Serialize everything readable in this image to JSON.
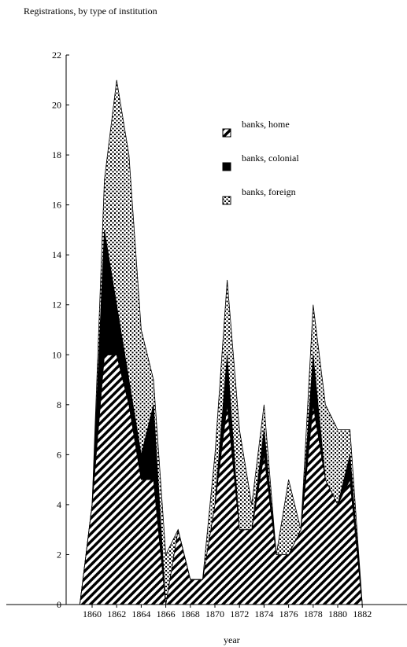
{
  "chart_data": {
    "type": "area",
    "stacked": true,
    "title": "Registrations, by type of institution",
    "xlabel": "year",
    "ylabel": "",
    "x": [
      1859,
      1860,
      1861,
      1862,
      1863,
      1864,
      1865,
      1866,
      1867,
      1868,
      1869,
      1870,
      1871,
      1872,
      1873,
      1874,
      1875,
      1876,
      1877,
      1878,
      1879,
      1880,
      1881,
      1882
    ],
    "xlim": [
      1859.5,
      1882.5
    ],
    "ylim": [
      0,
      22
    ],
    "x_ticks": [
      1860,
      1862,
      1864,
      1866,
      1868,
      1870,
      1872,
      1874,
      1876,
      1878,
      1880,
      1882
    ],
    "x_tick_labels": [
      "1860",
      "1862",
      "1864",
      "1866",
      "1868",
      "1870",
      "1872",
      "1874",
      "1876",
      "1878",
      "1880",
      "1882"
    ],
    "y_ticks": [
      0,
      2,
      4,
      6,
      8,
      10,
      12,
      14,
      16,
      18,
      20,
      22
    ],
    "y_tick_labels": [
      "0",
      "2",
      "4",
      "6",
      "8",
      "10",
      "12",
      "14",
      "16",
      "18",
      "20",
      "22"
    ],
    "series": [
      {
        "name": "banks, home",
        "values": [
          0,
          4,
          10,
          10,
          8,
          5,
          5,
          0,
          3,
          1,
          1,
          4,
          8,
          3,
          3,
          6,
          2,
          2,
          3,
          8,
          5,
          4,
          5,
          0
        ],
        "pattern": "diagonal-stripes",
        "color": "#000000"
      },
      {
        "name": "banks, colonial",
        "values": [
          0,
          0,
          5,
          2,
          1,
          1,
          3,
          0,
          0,
          0,
          0,
          0,
          2,
          0,
          0,
          1,
          0,
          0,
          0,
          2,
          0,
          0,
          1,
          0
        ],
        "pattern": "solid",
        "color": "#000000"
      },
      {
        "name": "banks, foreign",
        "values": [
          0,
          0,
          2,
          9,
          9,
          5,
          1,
          2,
          0,
          0,
          0,
          2,
          3,
          4,
          1,
          1,
          0,
          3,
          0,
          2,
          3,
          3,
          1,
          0
        ],
        "pattern": "dots",
        "color": "#000000"
      }
    ],
    "legend_position": "top-right",
    "grid": false
  }
}
